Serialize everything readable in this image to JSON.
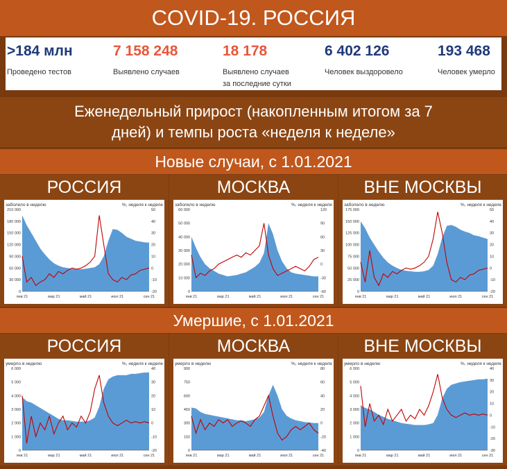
{
  "header": {
    "title": "COVID-19. РОССИЯ"
  },
  "stats": [
    {
      "value": ">184 млн",
      "label": "Проведено тестов",
      "color": "#1f3a7a"
    },
    {
      "value": "7 158 248",
      "label": "Выявлено случаев",
      "color": "#e8563a"
    },
    {
      "value": "18 178",
      "label": "Выявлено случаев",
      "label2": "за последние сутки",
      "color": "#e8563a"
    },
    {
      "value": "6 402 126",
      "label": "Человек выздоровело",
      "color": "#1f3a7a"
    },
    {
      "value": "193 468",
      "label": "Человек умерло",
      "color": "#1f3a7a"
    }
  ],
  "subtitle": {
    "line1": "Еженедельный прирост (накопленным итогом за 7",
    "line2": "дней) и темпы роста «неделя к неделе»"
  },
  "sections": [
    {
      "title": "Новые случаи, с 1.01.2021"
    },
    {
      "title": "Умершие, с 1.01.2021"
    }
  ],
  "colors": {
    "area": "#5b9bd5",
    "line": "#c00000",
    "title_bar": "#c0571c",
    "panel_bg": "#8b4513"
  },
  "chart_data": [
    {
      "type": "area",
      "panel_title": "РОССИЯ",
      "left_axis_label": "заболело в неделю",
      "right_axis_label": "%, неделя к неделе",
      "x_ticks": [
        "янв 21",
        "мар 21",
        "май 21",
        "июл 21",
        "сен 21"
      ],
      "ylim": [
        0,
        210000
      ],
      "y_ticks": [
        "0",
        "30 000",
        "60 000",
        "90 000",
        "120 000",
        "150 000",
        "180 000",
        "210 000"
      ],
      "y2lim": [
        -20,
        50
      ],
      "y2_ticks": [
        "-20",
        "-10",
        "0",
        "10",
        "20",
        "30",
        "40",
        "50"
      ],
      "area": [
        195000,
        170000,
        150000,
        130000,
        110000,
        95000,
        82000,
        72000,
        66000,
        62000,
        60000,
        58000,
        57000,
        57000,
        58000,
        60000,
        62000,
        70000,
        90000,
        130000,
        160000,
        158000,
        150000,
        140000,
        135000,
        130000,
        128000,
        126000,
        125000
      ],
      "line": [
        10,
        -12,
        -8,
        -15,
        -12,
        -10,
        -5,
        -8,
        -3,
        -5,
        -2,
        0,
        -1,
        0,
        2,
        5,
        10,
        45,
        20,
        -5,
        -10,
        -12,
        -8,
        -10,
        -6,
        -5,
        -2,
        -1,
        0
      ]
    },
    {
      "type": "area",
      "panel_title": "МОСКВА",
      "left_axis_label": "заболело в неделю",
      "right_axis_label": "%, неделя к неделе",
      "x_ticks": [
        "янв 21",
        "мар 21",
        "май 21",
        "июл 21",
        "сен 21"
      ],
      "ylim": [
        0,
        60000
      ],
      "y_ticks": [
        "0",
        "10 000",
        "20 000",
        "30 000",
        "40 000",
        "50 000",
        "60 000"
      ],
      "y2lim": [
        -60,
        120
      ],
      "y2_ticks": [
        "-60",
        "-30",
        "0",
        "30",
        "60",
        "90",
        "120"
      ],
      "area": [
        40000,
        32000,
        25000,
        20000,
        17000,
        15000,
        13000,
        12000,
        11000,
        11500,
        12000,
        13000,
        14000,
        16000,
        18000,
        21000,
        28000,
        50000,
        42000,
        30000,
        22000,
        17000,
        14000,
        13000,
        12500,
        12000,
        11500,
        11000,
        11000
      ],
      "line": [
        20,
        -30,
        -20,
        -25,
        -15,
        -10,
        0,
        5,
        10,
        15,
        20,
        15,
        25,
        20,
        30,
        40,
        90,
        20,
        -10,
        -25,
        -20,
        -15,
        -10,
        -5,
        -10,
        -15,
        -5,
        10,
        15
      ]
    },
    {
      "type": "area",
      "panel_title": "ВНЕ МОСКВЫ",
      "left_axis_label": "заболело в неделю",
      "right_axis_label": "%, неделя к неделе",
      "x_ticks": [
        "янв 21",
        "мар 21",
        "май 21",
        "июл 21",
        "сен 21"
      ],
      "ylim": [
        0,
        175000
      ],
      "y_ticks": [
        "0",
        "25 000",
        "50 000",
        "75 000",
        "100 000",
        "125 000",
        "150 000",
        "175 000"
      ],
      "y2lim": [
        -20,
        50
      ],
      "y2_ticks": [
        "-20",
        "-10",
        "0",
        "10",
        "20",
        "30",
        "40",
        "50"
      ],
      "area": [
        150000,
        135000,
        115000,
        100000,
        85000,
        72000,
        62000,
        55000,
        50000,
        46000,
        44000,
        43000,
        42000,
        42000,
        43000,
        46000,
        55000,
        80000,
        115000,
        140000,
        142000,
        138000,
        132000,
        128000,
        125000,
        120000,
        118000,
        115000,
        112000
      ],
      "line": [
        5,
        -12,
        15,
        -8,
        -15,
        -5,
        -8,
        -3,
        -5,
        -2,
        0,
        -1,
        0,
        2,
        5,
        10,
        25,
        48,
        30,
        5,
        -10,
        -12,
        -8,
        -10,
        -6,
        -5,
        -2,
        -1,
        0
      ]
    },
    {
      "type": "area",
      "panel_title": "РОССИЯ",
      "left_axis_label": "умерло в неделю",
      "right_axis_label": "%, неделя к неделе",
      "x_ticks": [
        "янв 21",
        "мар 21",
        "май 21",
        "июл 21",
        "сен 21"
      ],
      "ylim": [
        0,
        6000
      ],
      "y_ticks": [
        "0",
        "1 000",
        "2 000",
        "3 000",
        "4 000",
        "5 000",
        "6 000"
      ],
      "y2lim": [
        -20,
        40
      ],
      "y2_ticks": [
        "-20",
        "-10",
        "0",
        "10",
        "20",
        "30",
        "40"
      ],
      "area": [
        3900,
        3600,
        3500,
        3300,
        3100,
        2900,
        2700,
        2500,
        2300,
        2200,
        2200,
        2150,
        2100,
        2100,
        2100,
        2200,
        2400,
        3200,
        4500,
        5200,
        5400,
        5500,
        5500,
        5500,
        5600,
        5600,
        5650,
        5700,
        5700
      ],
      "line": [
        20,
        -15,
        5,
        -10,
        0,
        -5,
        5,
        -8,
        0,
        5,
        -5,
        0,
        -3,
        5,
        0,
        8,
        25,
        35,
        15,
        5,
        0,
        -2,
        0,
        2,
        0,
        1,
        0,
        1,
        0
      ]
    },
    {
      "type": "area",
      "panel_title": "МОСКВА",
      "left_axis_label": "умерло в неделю",
      "right_axis_label": "%, неделя к неделе",
      "x_ticks": [
        "янв 21",
        "мар 21",
        "май 21",
        "июл 21",
        "сен 21"
      ],
      "ylim": [
        0,
        900
      ],
      "y_ticks": [
        "0",
        "150",
        "300",
        "450",
        "600",
        "750",
        "900"
      ],
      "y2lim": [
        -40,
        80
      ],
      "y2_ticks": [
        "-40",
        "-20",
        "0",
        "20",
        "40",
        "60",
        "80"
      ],
      "area": [
        470,
        460,
        420,
        400,
        390,
        380,
        370,
        360,
        350,
        340,
        330,
        330,
        320,
        330,
        340,
        360,
        420,
        600,
        720,
        600,
        450,
        380,
        350,
        330,
        320,
        310,
        305,
        300,
        300
      ],
      "line": [
        10,
        -15,
        5,
        -10,
        0,
        -5,
        5,
        0,
        5,
        -5,
        0,
        3,
        0,
        -5,
        5,
        10,
        25,
        40,
        10,
        -15,
        -25,
        -20,
        -10,
        -5,
        -10,
        -5,
        0,
        -10,
        -15
      ]
    },
    {
      "type": "area",
      "panel_title": "ВНЕ МОСКВЫ",
      "left_axis_label": "умерло в неделю",
      "right_axis_label": "%, неделя к неделе",
      "x_ticks": [
        "янв 21",
        "мар 21",
        "май 21",
        "июл 21",
        "сен 21"
      ],
      "ylim": [
        0,
        6000
      ],
      "y_ticks": [
        "0",
        "1 000",
        "2 000",
        "3 000",
        "4 000",
        "5 000",
        "6 000"
      ],
      "y2lim": [
        -30,
        40
      ],
      "y2_ticks": [
        "-30",
        "-20",
        "-10",
        "0",
        "10",
        "20",
        "30",
        "40"
      ],
      "area": [
        3300,
        3100,
        3000,
        2800,
        2600,
        2450,
        2300,
        2200,
        2100,
        2000,
        1950,
        1900,
        1850,
        1850,
        1850,
        1900,
        2000,
        2600,
        3800,
        4500,
        4800,
        4900,
        5000,
        5050,
        5100,
        5150,
        5200,
        5200,
        5250
      ],
      "line": [
        25,
        -10,
        10,
        -5,
        0,
        -8,
        5,
        -5,
        0,
        5,
        -5,
        0,
        -3,
        5,
        0,
        8,
        20,
        35,
        15,
        5,
        0,
        -2,
        0,
        2,
        0,
        1,
        0,
        1,
        0
      ]
    }
  ]
}
